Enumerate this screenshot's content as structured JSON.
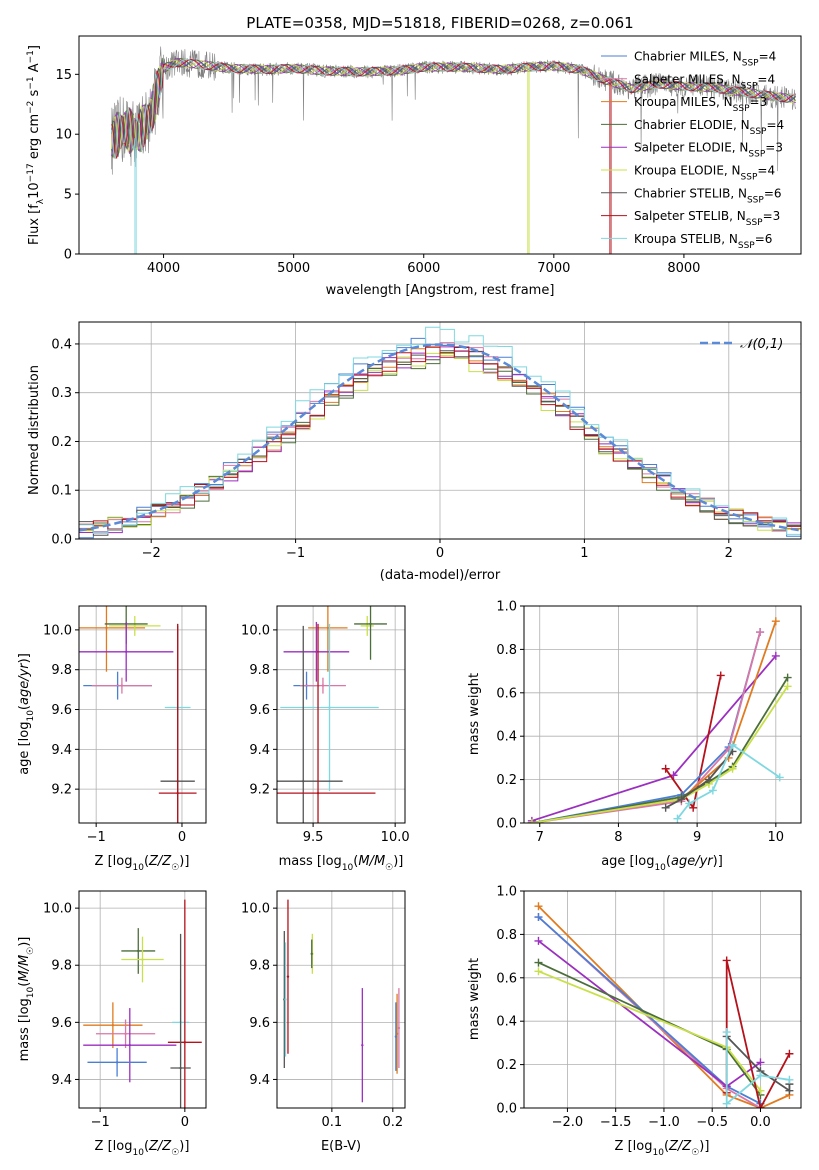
{
  "figure": {
    "title": "PLATE=0358, MJD=51818, FIBERID=0268, z=0.061"
  },
  "colors": {
    "Chabrier MILES": "#4a7fd4",
    "Salpeter MILES": "#d977a6",
    "Kroupa MILES": "#e07b20",
    "Chabrier ELODIE": "#4c6e3a",
    "Salpeter ELODIE": "#9b2fbf",
    "Kroupa ELODIE": "#c8e04a",
    "Chabrier STELIB": "#555555",
    "Salpeter STELIB": "#b5121b",
    "Kroupa STELIB": "#7fd8e0",
    "gaussian": "#5b8ad6",
    "spectrum": "#808080"
  },
  "chart_data": [
    {
      "id": "spectrum",
      "type": "line",
      "xlabel": "wavelength [Angstrom, rest frame]",
      "ylabel": "Flux [f_λ 10^-17 erg cm^-2 s^-1 A^-1]",
      "xlim": [
        3350,
        8900
      ],
      "ylim": [
        0,
        18.2
      ],
      "xticks": [
        4000,
        5000,
        6000,
        7000,
        8000
      ],
      "yticks": [
        0,
        5,
        10,
        15
      ],
      "grid": false,
      "legend_position": "right",
      "legend": [
        {
          "label": "Chabrier MILES",
          "nssp": "N_SSP=4",
          "color_key": "Chabrier MILES"
        },
        {
          "label": "Salpeter MILES",
          "nssp": "N_SSP=4",
          "color_key": "Salpeter MILES"
        },
        {
          "label": "Kroupa MILES",
          "nssp": "N_SSP=3",
          "color_key": "Kroupa MILES"
        },
        {
          "label": "Chabrier ELODIE",
          "nssp": "N_SSP=4",
          "color_key": "Chabrier ELODIE"
        },
        {
          "label": "Salpeter ELODIE",
          "nssp": "N_SSP=3",
          "color_key": "Salpeter ELODIE"
        },
        {
          "label": "Kroupa ELODIE",
          "nssp": "N_SSP=4",
          "color_key": "Kroupa ELODIE"
        },
        {
          "label": "Chabrier STELIB",
          "nssp": "N_SSP=6",
          "color_key": "Chabrier STELIB"
        },
        {
          "label": "Salpeter STELIB",
          "nssp": "N_SSP=3",
          "color_key": "Salpeter STELIB"
        },
        {
          "label": "Kroupa STELIB",
          "nssp": "N_SSP=6",
          "color_key": "Kroupa STELIB"
        }
      ],
      "continuum": {
        "wavelength": [
          3600,
          3700,
          3800,
          3900,
          4000,
          4100,
          4300,
          4500,
          4800,
          5000,
          5200,
          5500,
          5800,
          6000,
          6300,
          6600,
          6800,
          7000,
          7200,
          7400,
          7600,
          7800,
          8000,
          8200,
          8400,
          8600,
          8800
        ],
        "flux": [
          9.5,
          10.5,
          10.0,
          11.5,
          15.5,
          16.0,
          15.8,
          15.5,
          15.4,
          15.5,
          15.3,
          15.2,
          15.3,
          15.6,
          15.6,
          15.4,
          15.6,
          15.7,
          15.4,
          14.5,
          13.8,
          14.2,
          14.0,
          13.9,
          13.6,
          13.3,
          13.0
        ]
      },
      "model_dropouts": [
        {
          "series": "Kroupa STELIB",
          "wavelength": 3780
        },
        {
          "series": "Kroupa MILES",
          "wavelength": 3925
        },
        {
          "series": "Kroupa ELODIE",
          "wavelength": 6800
        },
        {
          "series": "Salpeter STELIB",
          "wavelength": 7430
        }
      ]
    },
    {
      "id": "residual-histogram",
      "type": "bar",
      "xlabel": "(data-model)/error",
      "ylabel": "Normed distribution",
      "xlim": [
        -2.5,
        2.5
      ],
      "ylim": [
        0,
        0.445
      ],
      "xticks": [
        -2,
        -1,
        0,
        1,
        2
      ],
      "yticks": [
        0.0,
        0.1,
        0.2,
        0.3,
        0.4
      ],
      "grid": true,
      "legend_position": "top-right",
      "reference_label": "𝒩(0,1)",
      "bin_width": 0.1,
      "series_peaks": [
        {
          "name": "Chabrier MILES",
          "peak": 0.4
        },
        {
          "name": "Salpeter MILES",
          "peak": 0.39
        },
        {
          "name": "Kroupa MILES",
          "peak": 0.38
        },
        {
          "name": "Chabrier ELODIE",
          "peak": 0.37
        },
        {
          "name": "Salpeter ELODIE",
          "peak": 0.38
        },
        {
          "name": "Kroupa ELODIE",
          "peak": 0.37
        },
        {
          "name": "Chabrier STELIB",
          "peak": 0.38
        },
        {
          "name": "Salpeter STELIB",
          "peak": 0.38
        },
        {
          "name": "Kroupa STELIB",
          "peak": 0.42
        }
      ]
    },
    {
      "id": "age-vs-Z",
      "type": "scatter",
      "xlabel": "Z [log10(Z/Z☉)]",
      "ylabel": "age  [log10(age/yr)]",
      "xlim": [
        -1.2,
        0.28
      ],
      "ylim": [
        9.03,
        10.12
      ],
      "xticks": [
        -1,
        0
      ],
      "yticks": [
        9.2,
        9.4,
        9.6,
        9.8,
        10.0
      ],
      "grid": true,
      "points": [
        {
          "series": "Kroupa MILES",
          "x": -0.88,
          "y": 10.01,
          "xerr": 0.45,
          "yerr": 0.22
        },
        {
          "series": "Kroupa ELODIE",
          "x": -0.55,
          "y": 10.02,
          "xerr": 0.3,
          "yerr": 0.05
        },
        {
          "series": "Chabrier ELODIE",
          "x": -0.65,
          "y": 10.03,
          "xerr": 0.25,
          "yerr": 0.1
        },
        {
          "series": "Salpeter ELODIE",
          "x": -0.65,
          "y": 9.89,
          "xerr": 0.55,
          "yerr": 0.15
        },
        {
          "series": "Chabrier MILES",
          "x": -0.75,
          "y": 9.72,
          "xerr": 0.4,
          "yerr": 0.07
        },
        {
          "series": "Salpeter MILES",
          "x": -0.7,
          "y": 9.72,
          "xerr": 0.35,
          "yerr": 0.04
        },
        {
          "series": "Kroupa STELIB",
          "x": -0.05,
          "y": 9.61,
          "xerr": 0.15,
          "yerr": 0.42
        },
        {
          "series": "Chabrier STELIB",
          "x": -0.05,
          "y": 9.24,
          "xerr": 0.2,
          "yerr": 0.78
        },
        {
          "series": "Salpeter STELIB",
          "x": -0.05,
          "y": 9.18,
          "xerr": 0.22,
          "yerr": 0.85
        }
      ]
    },
    {
      "id": "age-vs-mass",
      "type": "scatter",
      "xlabel": "mass [log10(M/M☉)]",
      "ylabel": "",
      "xlim": [
        9.28,
        10.06
      ],
      "ylim": [
        9.03,
        10.12
      ],
      "xticks": [
        9.5,
        10.0
      ],
      "yticks": [
        9.2,
        9.4,
        9.6,
        9.8,
        10.0
      ],
      "grid": true,
      "points": [
        {
          "series": "Kroupa MILES",
          "x": 9.59,
          "y": 10.01,
          "xerr": 0.12,
          "yerr": 0.22
        },
        {
          "series": "Kroupa ELODIE",
          "x": 9.83,
          "y": 10.02,
          "xerr": 0.04,
          "yerr": 0.05
        },
        {
          "series": "Chabrier ELODIE",
          "x": 9.85,
          "y": 10.03,
          "xerr": 0.1,
          "yerr": 0.18
        },
        {
          "series": "Salpeter ELODIE",
          "x": 9.52,
          "y": 9.89,
          "xerr": 0.2,
          "yerr": 0.15
        },
        {
          "series": "Chabrier MILES",
          "x": 9.46,
          "y": 9.72,
          "xerr": 0.08,
          "yerr": 0.07
        },
        {
          "series": "Salpeter MILES",
          "x": 9.56,
          "y": 9.72,
          "xerr": 0.14,
          "yerr": 0.04
        },
        {
          "series": "Kroupa STELIB",
          "x": 9.6,
          "y": 9.61,
          "xerr": 0.3,
          "yerr": 0.42
        },
        {
          "series": "Chabrier STELIB",
          "x": 9.44,
          "y": 9.24,
          "xerr": 0.24,
          "yerr": 0.78
        },
        {
          "series": "Salpeter STELIB",
          "x": 9.53,
          "y": 9.18,
          "xerr": 0.35,
          "yerr": 0.85
        }
      ]
    },
    {
      "id": "weight-vs-age",
      "type": "line",
      "xlabel": "age  [log10(age/yr)]",
      "ylabel": "mass weight",
      "xlim": [
        6.8,
        10.32
      ],
      "ylim": [
        0,
        1.0
      ],
      "xticks": [
        7,
        8,
        9,
        10
      ],
      "yticks": [
        0.0,
        0.2,
        0.4,
        0.6,
        0.8,
        1.0
      ],
      "grid": true,
      "series": [
        {
          "name": "Salpeter ELODIE",
          "x": [
            6.9,
            8.7,
            10.0
          ],
          "y": [
            0.01,
            0.22,
            0.77
          ]
        },
        {
          "name": "Salpeter STELIB",
          "x": [
            8.6,
            8.95,
            9.3
          ],
          "y": [
            0.25,
            0.07,
            0.68
          ]
        },
        {
          "name": "Chabrier MILES",
          "x": [
            6.9,
            8.8,
            9.4,
            9.8
          ],
          "y": [
            0.0,
            0.13,
            0.35,
            0.88
          ]
        },
        {
          "name": "Salpeter MILES",
          "x": [
            6.9,
            8.8,
            9.4,
            9.8
          ],
          "y": [
            0.0,
            0.1,
            0.34,
            0.88
          ]
        },
        {
          "name": "Kroupa MILES",
          "x": [
            6.9,
            8.8,
            9.4,
            10.0
          ],
          "y": [
            0.0,
            0.11,
            0.3,
            0.93
          ]
        },
        {
          "name": "Chabrier ELODIE",
          "x": [
            6.9,
            8.8,
            9.15,
            9.45,
            10.15
          ],
          "y": [
            0.0,
            0.12,
            0.19,
            0.26,
            0.67
          ]
        },
        {
          "name": "Kroupa ELODIE",
          "x": [
            6.9,
            8.8,
            9.15,
            9.45,
            10.15
          ],
          "y": [
            0.0,
            0.11,
            0.18,
            0.25,
            0.63
          ]
        },
        {
          "name": "Chabrier STELIB",
          "x": [
            8.6,
            8.8,
            9.15,
            9.45
          ],
          "y": [
            0.07,
            0.11,
            0.2,
            0.33
          ]
        },
        {
          "name": "Kroupa STELIB",
          "x": [
            8.75,
            8.9,
            9.2,
            9.45,
            10.05
          ],
          "y": [
            0.02,
            0.09,
            0.15,
            0.36,
            0.21
          ]
        }
      ]
    },
    {
      "id": "mass-vs-Z",
      "type": "scatter",
      "xlabel": "Z [log10(Z/Z☉)]",
      "ylabel": "mass [log10(M/M☉)]",
      "xlim": [
        -1.25,
        0.25
      ],
      "ylim": [
        9.3,
        10.06
      ],
      "xticks": [
        -1,
        0
      ],
      "yticks": [
        9.4,
        9.6,
        9.8,
        10.0
      ],
      "grid": true,
      "points": [
        {
          "series": "Chabrier ELODIE",
          "x": -0.55,
          "y": 9.85,
          "xerr": 0.2,
          "yerr": 0.08
        },
        {
          "series": "Kroupa ELODIE",
          "x": -0.5,
          "y": 9.82,
          "xerr": 0.25,
          "yerr": 0.08
        },
        {
          "series": "Kroupa MILES",
          "x": -0.85,
          "y": 9.59,
          "xerr": 0.35,
          "yerr": 0.08
        },
        {
          "series": "Salpeter MILES",
          "x": -0.7,
          "y": 9.56,
          "xerr": 0.35,
          "yerr": 0.05
        },
        {
          "series": "Salpeter ELODIE",
          "x": -0.65,
          "y": 9.52,
          "xerr": 0.55,
          "yerr": 0.13
        },
        {
          "series": "Chabrier MILES",
          "x": -0.8,
          "y": 9.46,
          "xerr": 0.35,
          "yerr": 0.05
        },
        {
          "series": "Kroupa STELIB",
          "x": -0.05,
          "y": 9.6,
          "xerr": 0.1,
          "yerr": 0.15
        },
        {
          "series": "Salpeter STELIB",
          "x": 0.0,
          "y": 9.53,
          "xerr": 0.2,
          "yerr": 0.5
        },
        {
          "series": "Chabrier STELIB",
          "x": -0.05,
          "y": 9.44,
          "xerr": 0.12,
          "yerr": 0.47
        }
      ]
    },
    {
      "id": "mass-vs-ebv",
      "type": "scatter",
      "xlabel": "E(B-V)",
      "ylabel": "",
      "xlim": [
        0.01,
        0.22
      ],
      "ylim": [
        9.3,
        10.06
      ],
      "xticks": [
        0.1,
        0.2
      ],
      "yticks": [
        9.4,
        9.6,
        9.8,
        10.0
      ],
      "grid": true,
      "points": [
        {
          "series": "Chabrier STELIB",
          "x": 0.022,
          "y": 9.68,
          "xerr": 0,
          "yerr": 0.24
        },
        {
          "series": "Kroupa STELIB",
          "x": 0.024,
          "y": 9.68,
          "xerr": 0,
          "yerr": 0.2
        },
        {
          "series": "Salpeter STELIB",
          "x": 0.028,
          "y": 9.76,
          "xerr": 0,
          "yerr": 0.27
        },
        {
          "series": "Kroupa ELODIE",
          "x": 0.068,
          "y": 9.84,
          "xerr": 0,
          "yerr": 0.07
        },
        {
          "series": "Chabrier ELODIE",
          "x": 0.067,
          "y": 9.84,
          "xerr": 0,
          "yerr": 0.05
        },
        {
          "series": "Salpeter ELODIE",
          "x": 0.15,
          "y": 9.52,
          "xerr": 0,
          "yerr": 0.2
        },
        {
          "series": "Kroupa MILES",
          "x": 0.207,
          "y": 9.56,
          "xerr": 0,
          "yerr": 0.14
        },
        {
          "series": "Salpeter MILES",
          "x": 0.21,
          "y": 9.58,
          "xerr": 0,
          "yerr": 0.14
        },
        {
          "series": "Chabrier MILES",
          "x": 0.205,
          "y": 9.55,
          "xerr": 0,
          "yerr": 0.12
        }
      ]
    },
    {
      "id": "weight-vs-Z",
      "type": "line",
      "xlabel": "Z [log10(Z/Z☉)]",
      "ylabel": "mass weight",
      "xlim": [
        -2.45,
        0.42
      ],
      "ylim": [
        0,
        1.0
      ],
      "xticks": [
        -2.0,
        -1.5,
        -1.0,
        -0.5,
        0.0
      ],
      "yticks": [
        0.0,
        0.2,
        0.4,
        0.6,
        0.8,
        1.0
      ],
      "grid": true,
      "series": [
        {
          "name": "Kroupa MILES",
          "x": [
            -2.3,
            -0.35,
            0.0,
            0.3
          ],
          "y": [
            0.93,
            0.06,
            0.0,
            0.06
          ]
        },
        {
          "name": "Salpeter MILES",
          "x": [
            -2.3,
            -0.35,
            0.0
          ],
          "y": [
            0.88,
            0.09,
            0.0
          ]
        },
        {
          "name": "Chabrier MILES",
          "x": [
            -2.3,
            -0.35,
            0.0
          ],
          "y": [
            0.88,
            0.1,
            0.02
          ]
        },
        {
          "name": "Salpeter ELODIE",
          "x": [
            -2.3,
            -0.35,
            0.0
          ],
          "y": [
            0.77,
            0.1,
            0.21
          ]
        },
        {
          "name": "Chabrier ELODIE",
          "x": [
            -2.3,
            -0.35,
            0.0
          ],
          "y": [
            0.67,
            0.27,
            0.06
          ]
        },
        {
          "name": "Kroupa ELODIE",
          "x": [
            -2.3,
            -0.35,
            0.0
          ],
          "y": [
            0.63,
            0.28,
            0.08
          ]
        },
        {
          "name": "Salpeter STELIB",
          "x": [
            -0.35,
            -0.35,
            0.0,
            0.3
          ],
          "y": [
            0.07,
            0.68,
            0.0,
            0.25
          ]
        },
        {
          "name": "Chabrier STELIB",
          "x": [
            -0.35,
            0.0,
            0.3,
            0.3
          ],
          "y": [
            0.33,
            0.17,
            0.08,
            0.11
          ]
        },
        {
          "name": "Kroupa STELIB",
          "x": [
            -0.35,
            -0.35,
            0.0,
            0.3
          ],
          "y": [
            0.35,
            0.02,
            0.15,
            0.13
          ]
        }
      ]
    }
  ]
}
